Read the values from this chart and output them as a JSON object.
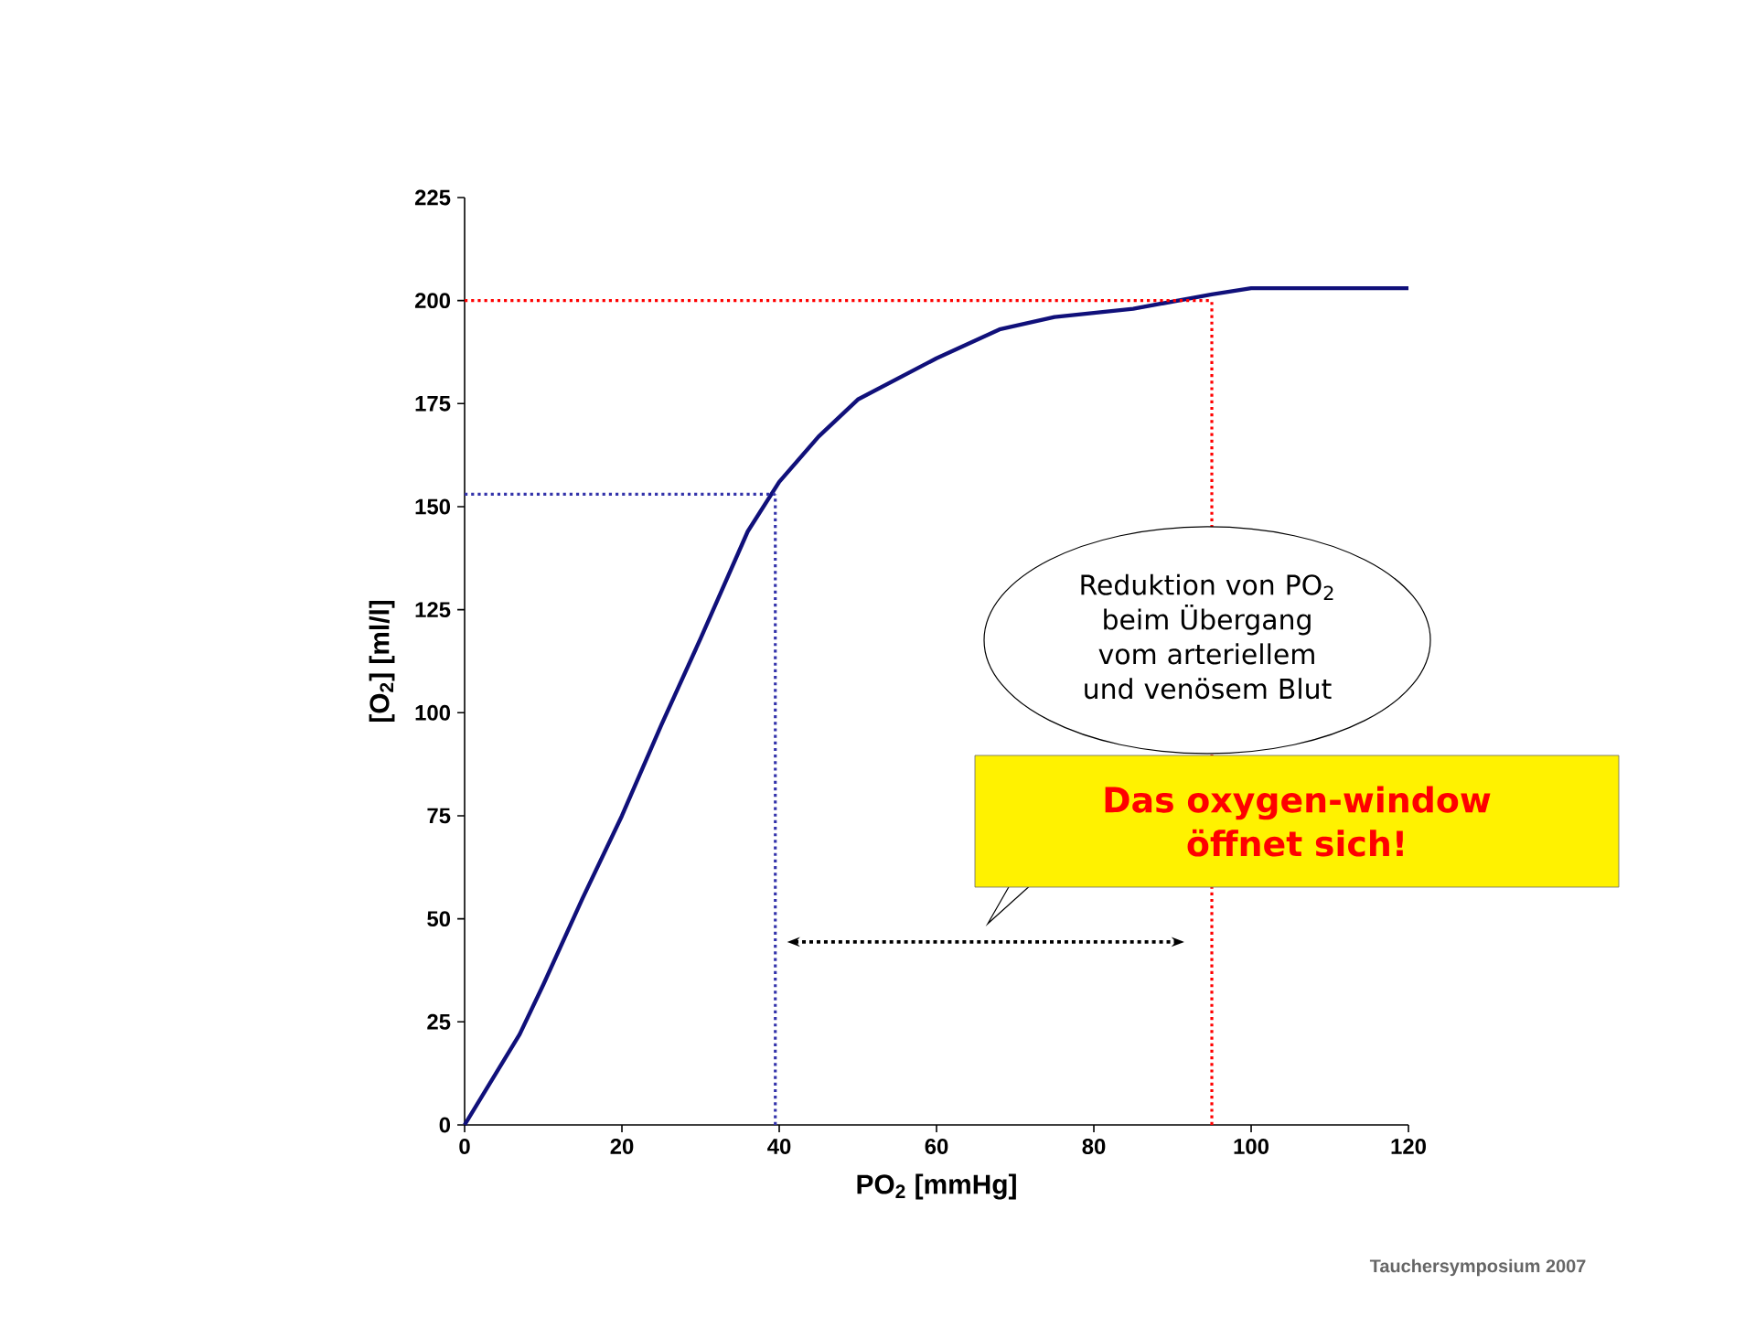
{
  "chart_data": {
    "type": "line",
    "xlabel": "PO$_{2}$ [mmHg]",
    "ylabel": "[O$_{2}$] [ml/l]",
    "x": [
      0,
      7,
      10,
      15,
      20,
      25,
      30,
      36,
      40,
      45,
      50,
      60,
      68,
      75,
      85,
      95,
      100,
      120
    ],
    "series": [
      {
        "color": "#10107a",
        "values": [
          0,
          22,
          34,
          55,
          75,
          97,
          118,
          144,
          156,
          167,
          176,
          186,
          193,
          196,
          198,
          201.5,
          203,
          203
        ]
      }
    ],
    "xlim": [
      0,
      120
    ],
    "ylim": [
      0,
      225
    ],
    "xticks": [
      0,
      20,
      40,
      60,
      80,
      100,
      120
    ],
    "yticks": [
      0,
      25,
      50,
      75,
      100,
      125,
      150,
      175,
      200,
      225
    ],
    "grid": false,
    "marker": "none",
    "line_style": "solid",
    "ref_lines": [
      {
        "axis": "y",
        "value": 200,
        "color": "#ff0000",
        "line_style": "dotted"
      },
      {
        "axis": "x",
        "value": 95,
        "color": "#ff0000",
        "line_style": "dotted"
      },
      {
        "axis": "y",
        "value": 153,
        "color": "#3333aa",
        "line_style": "dotted"
      },
      {
        "axis": "x",
        "value": 39.5,
        "color": "#3333aa",
        "line_style": "dotted"
      }
    ],
    "annotations": [
      "Reduktion von PO$_{2}$ beim Übergang vom arteriellem und venösem Blut",
      "Das oxygen-window öffnet sich!",
      "Tauchersymposium 2007"
    ]
  }
}
